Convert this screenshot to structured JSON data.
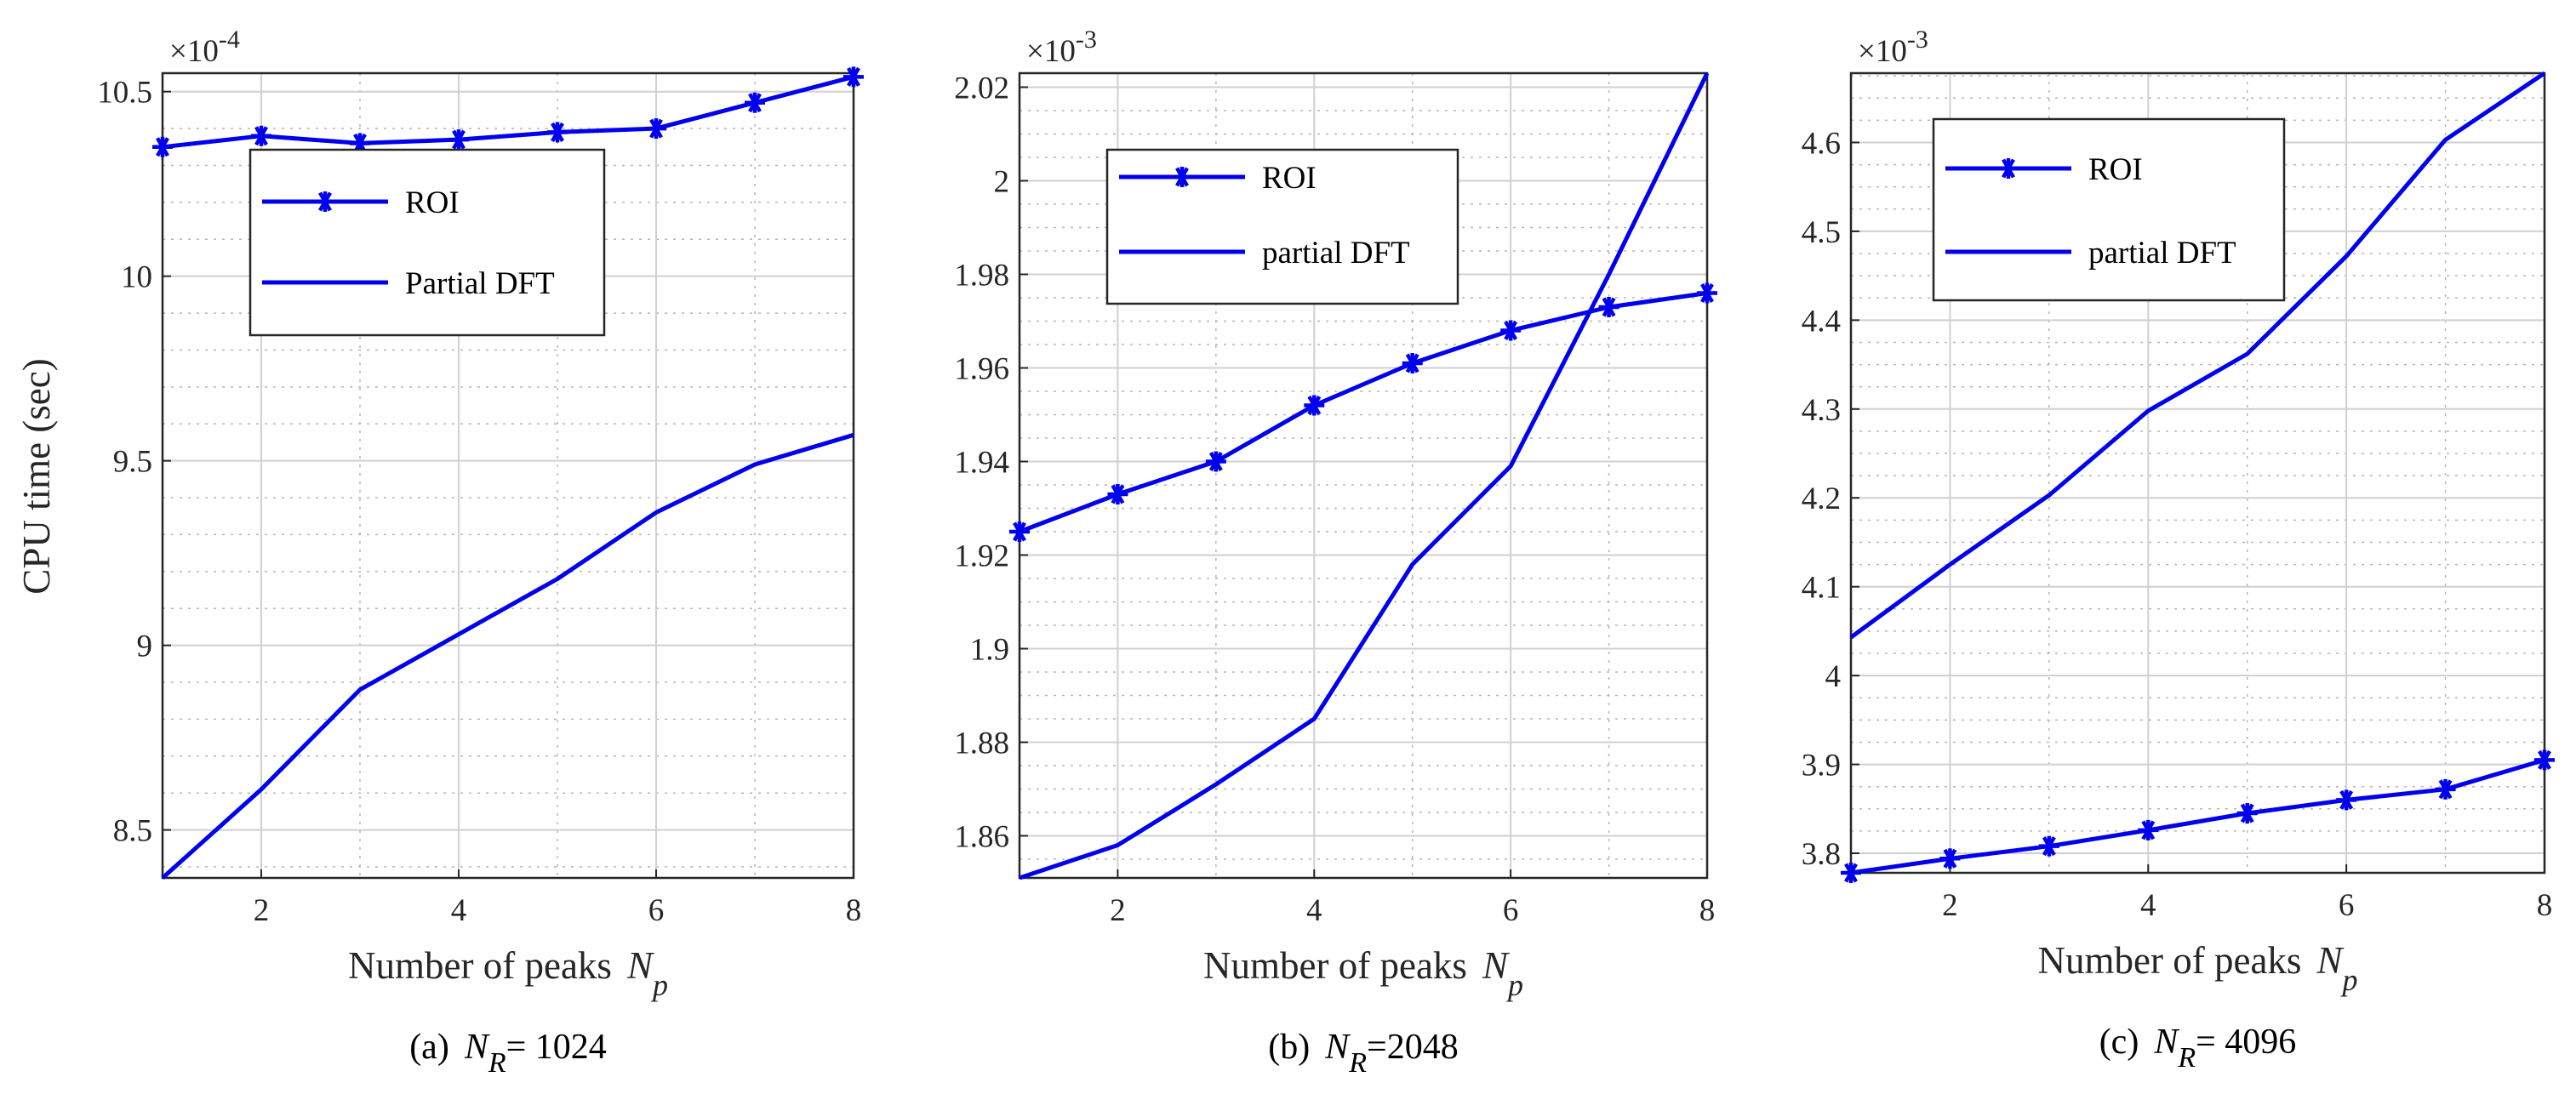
{
  "figure": {
    "ylabel": "CPU time (sec)"
  },
  "chart_data": [
    {
      "type": "line",
      "panel": "a",
      "caption": {
        "prefix": "(a)",
        "symbol": "N",
        "subscript": "R",
        "suffix": "= 1024"
      },
      "xlabel": {
        "text": "Number of peaks",
        "symbol": "N",
        "subscript": "p"
      },
      "exponent": {
        "prefix": "×10",
        "power": "-4"
      },
      "x": [
        1,
        2,
        3,
        4,
        5,
        6,
        7,
        8
      ],
      "xlim": [
        1,
        8
      ],
      "xticks": [
        2,
        4,
        6,
        8
      ],
      "ylim": [
        8.37,
        10.55
      ],
      "yticks": [
        8.5,
        9,
        9.5,
        10,
        10.5
      ],
      "yticklabels": [
        "8.5",
        "9",
        "9.5",
        "10",
        "10.5"
      ],
      "minor_step": 0.1,
      "legend": {
        "position": "upper-left-center"
      },
      "series": [
        {
          "name": "ROI",
          "marker": "asterisk",
          "values": [
            10.35,
            10.38,
            10.36,
            10.37,
            10.39,
            10.4,
            10.47,
            10.54
          ]
        },
        {
          "name": "Partial DFT",
          "marker": "none",
          "values": [
            8.37,
            8.61,
            8.88,
            9.03,
            9.18,
            9.36,
            9.49,
            9.57
          ]
        }
      ],
      "color": "#0000ee"
    },
    {
      "type": "line",
      "panel": "b",
      "caption": {
        "prefix": "(b)",
        "symbol": "N",
        "subscript": "R",
        "suffix": "=2048"
      },
      "xlabel": {
        "text": "Number of peaks",
        "symbol": "N",
        "subscript": "p"
      },
      "exponent": {
        "prefix": "×10",
        "power": "-3"
      },
      "x": [
        1,
        2,
        3,
        4,
        5,
        6,
        7,
        8
      ],
      "xlim": [
        1,
        8
      ],
      "xticks": [
        2,
        4,
        6,
        8
      ],
      "ylim": [
        1.851,
        2.023
      ],
      "yticks": [
        1.86,
        1.88,
        1.9,
        1.92,
        1.94,
        1.96,
        1.98,
        2.0,
        2.02
      ],
      "yticklabels": [
        "1.86",
        "1.88",
        "1.9",
        "1.92",
        "1.94",
        "1.96",
        "1.98",
        "2",
        "2.02"
      ],
      "minor_step": 0.005,
      "legend": {
        "position": "upper-center"
      },
      "series": [
        {
          "name": "ROI",
          "marker": "asterisk",
          "values": [
            1.925,
            1.933,
            1.94,
            1.952,
            1.961,
            1.968,
            1.973,
            1.976
          ]
        },
        {
          "name": "partial DFT",
          "marker": "none",
          "values": [
            1.851,
            1.858,
            1.871,
            1.885,
            1.918,
            1.939,
            1.98,
            2.023
          ]
        }
      ],
      "color": "#0000ee"
    },
    {
      "type": "line",
      "panel": "c",
      "caption": {
        "prefix": "(c)",
        "symbol": "N",
        "subscript": "R",
        "suffix": "= 4096"
      },
      "xlabel": {
        "text": "Number of peaks",
        "symbol": "N",
        "subscript": "p"
      },
      "exponent": {
        "prefix": "×10",
        "power": "-3"
      },
      "x": [
        1,
        2,
        3,
        4,
        5,
        6,
        7,
        8
      ],
      "xlim": [
        1,
        8
      ],
      "xticks": [
        2,
        4,
        6,
        8
      ],
      "ylim": [
        3.778,
        4.678
      ],
      "yticks": [
        3.8,
        3.9,
        4.0,
        4.1,
        4.2,
        4.3,
        4.4,
        4.5,
        4.6
      ],
      "yticklabels": [
        "3.8",
        "3.9",
        "4",
        "4.1",
        "4.2",
        "4.3",
        "4.4",
        "4.5",
        "4.6"
      ],
      "minor_step": 0.025,
      "legend": {
        "position": "upper-left-center"
      },
      "series": [
        {
          "name": "ROI",
          "marker": "asterisk",
          "values": [
            3.778,
            3.794,
            3.808,
            3.826,
            3.845,
            3.86,
            3.872,
            3.905
          ]
        },
        {
          "name": "partial DFT",
          "marker": "none",
          "values": [
            4.043,
            4.125,
            4.203,
            4.298,
            4.362,
            4.472,
            4.603,
            4.678
          ]
        }
      ],
      "color": "#0000ee"
    }
  ]
}
